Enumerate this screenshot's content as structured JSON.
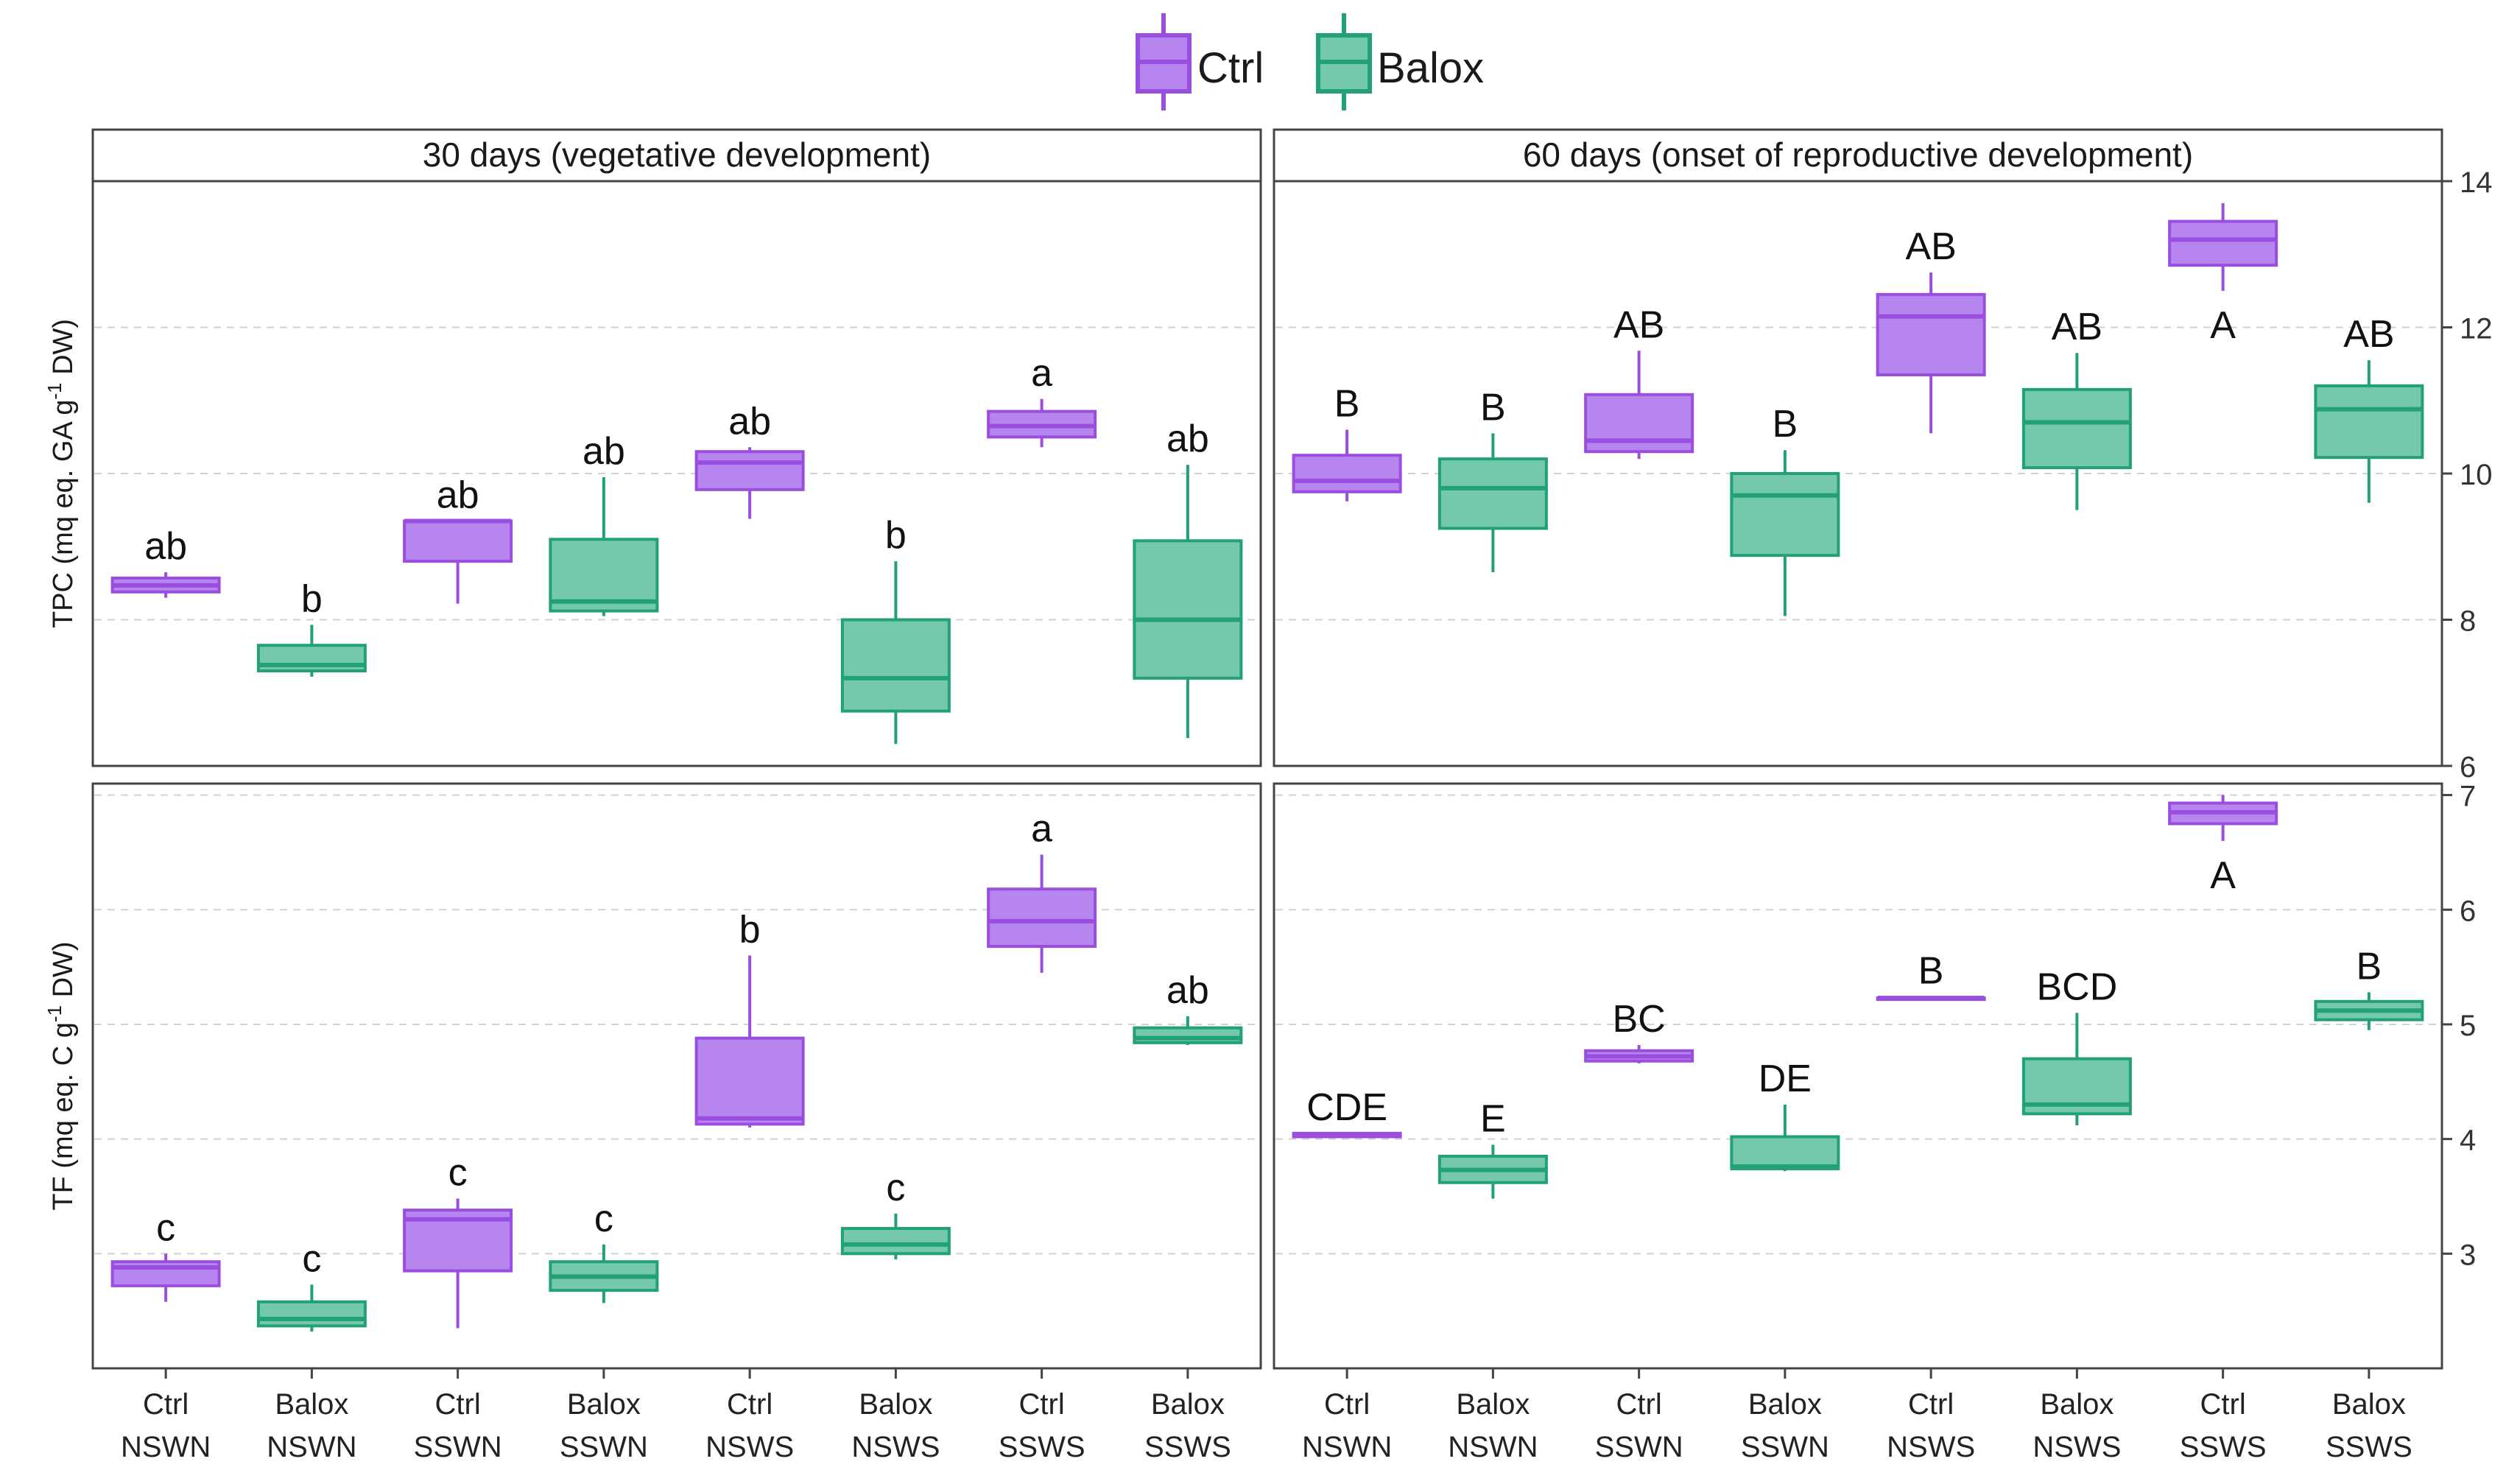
{
  "legend": {
    "items": [
      {
        "label": "Ctrl",
        "color": "#A056E6",
        "fill": "#B57DEC"
      },
      {
        "label": "Balox",
        "color": "#1E9E72",
        "fill": "#6BC4A3"
      }
    ]
  },
  "chart_data": {
    "type": "boxplot",
    "colors": {
      "Ctrl": {
        "stroke": "#9A4EE0",
        "fill": "#B785EE"
      },
      "Balox": {
        "stroke": "#22A077",
        "fill": "#73C9A9"
      }
    },
    "x_categories": [
      {
        "line1": "Ctrl",
        "line2": "NSWN",
        "group": "Ctrl"
      },
      {
        "line1": "Balox",
        "line2": "NSWN",
        "group": "Balox"
      },
      {
        "line1": "Ctrl",
        "line2": "SSWN",
        "group": "Ctrl"
      },
      {
        "line1": "Balox",
        "line2": "SSWN",
        "group": "Balox"
      },
      {
        "line1": "Ctrl",
        "line2": "NSWS",
        "group": "Ctrl"
      },
      {
        "line1": "Balox",
        "line2": "NSWS",
        "group": "Balox"
      },
      {
        "line1": "Ctrl",
        "line2": "SSWS",
        "group": "Ctrl"
      },
      {
        "line1": "Balox",
        "line2": "SSWS",
        "group": "Balox"
      }
    ],
    "columns": [
      "30 days (vegetative development)",
      "60 days (onset of reproductive development)"
    ],
    "rows": [
      {
        "ylabel_parts": [
          "TPC (mq eq. GA g",
          "-1",
          " DW)"
        ],
        "ylim": [
          6,
          14
        ],
        "ticks": [
          6,
          8,
          10,
          12,
          14
        ]
      },
      {
        "ylabel_parts": [
          "TF (mq eq. C g",
          "-1",
          " DW)"
        ],
        "ylim": [
          2,
          7.1
        ],
        "ticks": [
          3,
          4,
          5,
          6,
          7
        ]
      }
    ],
    "panels": [
      {
        "row": 0,
        "col": 0,
        "boxes": [
          {
            "min": 8.3,
            "q1": 8.38,
            "median": 8.47,
            "q3": 8.57,
            "max": 8.65,
            "label": "ab"
          },
          {
            "min": 7.22,
            "q1": 7.3,
            "median": 7.38,
            "q3": 7.65,
            "max": 7.93,
            "label": "b"
          },
          {
            "min": 8.22,
            "q1": 8.8,
            "median": 9.35,
            "q3": 9.35,
            "max": 9.35,
            "label": "ab"
          },
          {
            "min": 8.05,
            "q1": 8.12,
            "median": 8.25,
            "q3": 9.1,
            "max": 9.95,
            "label": "ab"
          },
          {
            "min": 9.38,
            "q1": 9.78,
            "median": 10.15,
            "q3": 10.3,
            "max": 10.36,
            "label": "ab"
          },
          {
            "min": 6.3,
            "q1": 6.75,
            "median": 7.2,
            "q3": 8.0,
            "max": 8.8,
            "label": "b"
          },
          {
            "min": 10.36,
            "q1": 10.5,
            "median": 10.65,
            "q3": 10.85,
            "max": 11.02,
            "label": "a"
          },
          {
            "min": 6.38,
            "q1": 7.2,
            "median": 8.0,
            "q3": 9.08,
            "max": 10.12,
            "label": "ab"
          }
        ]
      },
      {
        "row": 0,
        "col": 1,
        "boxes": [
          {
            "min": 9.62,
            "q1": 9.75,
            "median": 9.9,
            "q3": 10.25,
            "max": 10.6,
            "label": "B"
          },
          {
            "min": 8.65,
            "q1": 9.25,
            "median": 9.8,
            "q3": 10.2,
            "max": 10.55,
            "label": "B"
          },
          {
            "min": 10.2,
            "q1": 10.3,
            "median": 10.45,
            "q3": 11.08,
            "max": 11.68,
            "label": "AB"
          },
          {
            "min": 8.05,
            "q1": 8.88,
            "median": 9.7,
            "q3": 10.0,
            "max": 10.32,
            "label": "B"
          },
          {
            "min": 10.55,
            "q1": 11.35,
            "median": 12.15,
            "q3": 12.45,
            "max": 12.75,
            "label": "AB"
          },
          {
            "min": 9.5,
            "q1": 10.08,
            "median": 10.7,
            "q3": 11.15,
            "max": 11.65,
            "label": "AB"
          },
          {
            "min": 12.5,
            "q1": 12.85,
            "median": 13.2,
            "q3": 13.45,
            "max": 13.7,
            "label": "A",
            "label_pos": "below"
          },
          {
            "min": 9.6,
            "q1": 10.22,
            "median": 10.88,
            "q3": 11.2,
            "max": 11.55,
            "label": "AB"
          }
        ]
      },
      {
        "row": 1,
        "col": 0,
        "boxes": [
          {
            "min": 2.58,
            "q1": 2.72,
            "median": 2.88,
            "q3": 2.93,
            "max": 3.0,
            "label": "c"
          },
          {
            "min": 2.32,
            "q1": 2.37,
            "median": 2.43,
            "q3": 2.58,
            "max": 2.73,
            "label": "c"
          },
          {
            "min": 2.35,
            "q1": 2.85,
            "median": 3.3,
            "q3": 3.38,
            "max": 3.48,
            "label": "c"
          },
          {
            "min": 2.57,
            "q1": 2.68,
            "median": 2.8,
            "q3": 2.93,
            "max": 3.08,
            "label": "c"
          },
          {
            "min": 4.1,
            "q1": 4.13,
            "median": 4.18,
            "q3": 4.88,
            "max": 5.6,
            "label": "b"
          },
          {
            "min": 2.95,
            "q1": 3.0,
            "median": 3.08,
            "q3": 3.22,
            "max": 3.35,
            "label": "c"
          },
          {
            "min": 5.45,
            "q1": 5.68,
            "median": 5.9,
            "q3": 6.18,
            "max": 6.48,
            "label": "a"
          },
          {
            "min": 4.82,
            "q1": 4.84,
            "median": 4.88,
            "q3": 4.97,
            "max": 5.07,
            "label": "ab"
          }
        ]
      },
      {
        "row": 1,
        "col": 1,
        "boxes": [
          {
            "min": 4.02,
            "q1": 4.02,
            "median": 4.04,
            "q3": 4.05,
            "max": 4.05,
            "label": "CDE"
          },
          {
            "min": 3.48,
            "q1": 3.62,
            "median": 3.73,
            "q3": 3.85,
            "max": 3.95,
            "label": "E"
          },
          {
            "min": 4.66,
            "q1": 4.68,
            "median": 4.72,
            "q3": 4.77,
            "max": 4.82,
            "label": "BC"
          },
          {
            "min": 3.72,
            "q1": 3.74,
            "median": 3.76,
            "q3": 4.02,
            "max": 4.3,
            "label": "DE"
          },
          {
            "min": 5.22,
            "q1": 5.22,
            "median": 5.23,
            "q3": 5.23,
            "max": 5.24,
            "label": "B"
          },
          {
            "min": 4.12,
            "q1": 4.22,
            "median": 4.3,
            "q3": 4.7,
            "max": 5.1,
            "label": "BCD"
          },
          {
            "min": 6.6,
            "q1": 6.75,
            "median": 6.85,
            "q3": 6.93,
            "max": 7.0,
            "label": "A",
            "label_pos": "below"
          },
          {
            "min": 4.95,
            "q1": 5.04,
            "median": 5.12,
            "q3": 5.2,
            "max": 5.28,
            "label": "B"
          }
        ]
      }
    ]
  }
}
